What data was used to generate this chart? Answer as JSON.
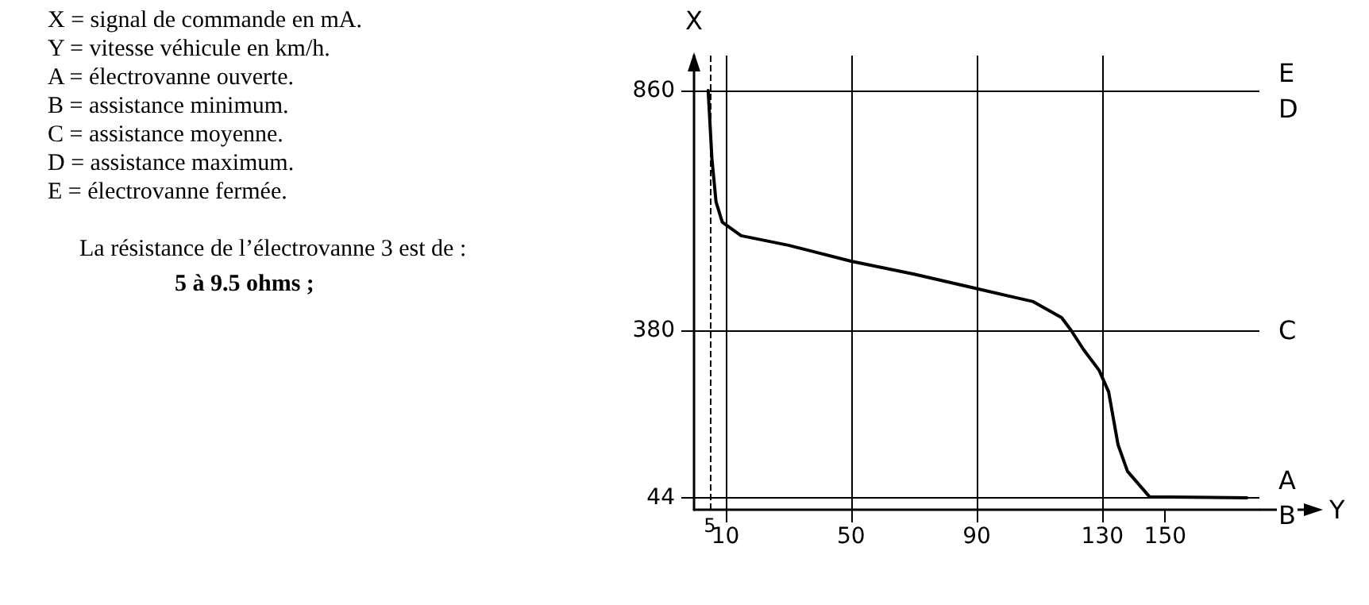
{
  "chart_data": {
    "type": "line",
    "xlabel": "Y",
    "ylabel": "X",
    "annotations": [
      "X = signal de commande en mA.",
      "Y = vitesse véhicule en km/h.",
      "A = électrovanne ouverte.",
      "B = assistance minimum.",
      "C = assistance moyenne.",
      "D = assistance maximum.",
      "E = électrovanne fermée.",
      "La résistance de l’électrovanne 3 est de :",
      "5 à 9.5 ohms ;",
      "D",
      "B"
    ],
    "x": [
      4.5,
      5.7,
      7,
      9,
      15,
      30,
      50,
      70,
      90,
      108,
      117,
      120,
      124,
      129,
      132,
      135,
      138,
      145,
      176
    ],
    "series": [
      {
        "color": "#000000",
        "values": [
          860,
          723,
          637,
          596,
          569,
          550,
          518,
          492,
          463,
          437,
          405,
          380,
          341,
          299,
          256,
          150,
          97,
          46,
          44
        ]
      }
    ],
    "xlim": [
      0,
      180
    ],
    "xticks": [
      10,
      50,
      90,
      130,
      150
    ],
    "ylim": [
      20,
      930
    ],
    "yticks": [
      44,
      380,
      860
    ],
    "ref_lines": [
      {
        "axis": "y",
        "value": 860,
        "label": "E"
      },
      {
        "axis": "y",
        "value": 380,
        "label": "C"
      },
      {
        "axis": "y",
        "value": 44,
        "label": "A"
      },
      {
        "axis": "x",
        "value": 5,
        "label": "5",
        "line_style": "dashed"
      },
      {
        "axis": "x",
        "value": 10
      },
      {
        "axis": "x",
        "value": 50
      },
      {
        "axis": "x",
        "value": 90
      },
      {
        "axis": "x",
        "value": 130
      }
    ],
    "grid": false,
    "marker": "none",
    "line_style": "solid"
  }
}
